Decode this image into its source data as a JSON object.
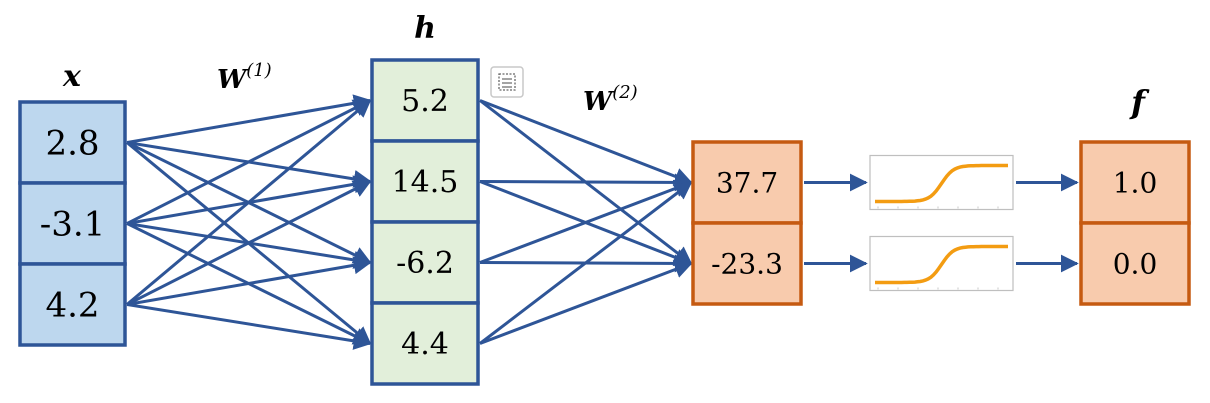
{
  "layers": {
    "input": {
      "label": "x",
      "values": [
        "2.8",
        "-3.1",
        "4.2"
      ]
    },
    "hidden": {
      "label": "h",
      "values": [
        "5.2",
        "14.5",
        "-6.2",
        "4.4"
      ]
    },
    "output_pre": {
      "values": [
        "37.7",
        "-23.3"
      ]
    },
    "output": {
      "label": "f",
      "values": [
        "1.0",
        "0.0"
      ]
    }
  },
  "weights": {
    "w1": {
      "base": "W",
      "sup": "(1)"
    },
    "w2": {
      "base": "W",
      "sup": "(2)"
    }
  },
  "activation": {
    "kind": "sigmoid",
    "count": 2
  },
  "colors": {
    "input_fill": "#bdd7ee",
    "input_stroke": "#2e5597",
    "hidden_fill": "#e2efda",
    "hidden_stroke": "#2e5597",
    "output_fill": "#f8cbad",
    "output_stroke": "#c55a11",
    "edge": "#2e5597",
    "sigmoid_curve": "#f39c12"
  },
  "icons": {
    "capture": "capture-icon"
  }
}
